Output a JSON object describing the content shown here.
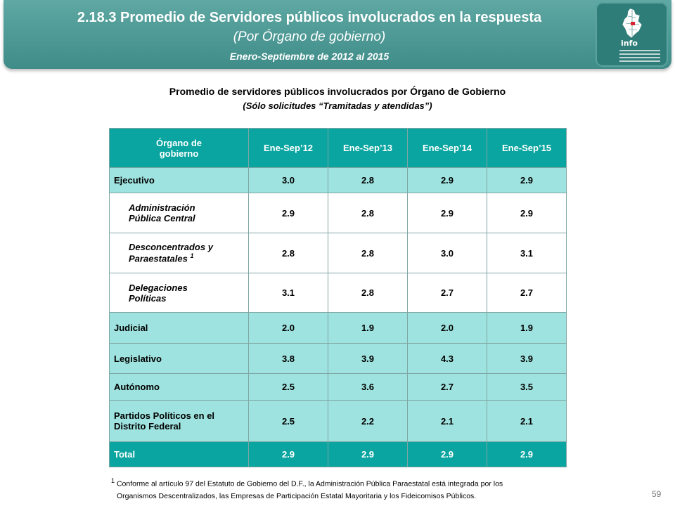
{
  "header": {
    "title": "2.18.3 Promedio de Servidores públicos involucrados en la respuesta",
    "subtitle": "(Por Órgano de gobierno)",
    "period": "Enero-Septiembre de 2012 al 2015"
  },
  "logo": {
    "text": "info",
    "icon": "mexico-city-map-icon"
  },
  "caption": {
    "line1": "Promedio de servidores públicos involucrados por Órgano de Gobierno",
    "line2": "(Sólo solicitudes “Tramitadas y atendidas”)"
  },
  "table": {
    "header": {
      "col0_line1": "Órgano de",
      "col0_line2": "gobierno",
      "c1": "Ene-Sep’12",
      "c2": "Ene-Sep’13",
      "c3": "Ene-Sep’14",
      "c4": "Ene-Sep’15"
    },
    "rows": [
      {
        "l1": "Ejecutivo",
        "l2": "",
        "v": [
          "3.0",
          "2.8",
          "2.9",
          "2.9"
        ]
      },
      {
        "l1": "Administración",
        "l2": "Pública Central",
        "v": [
          "2.9",
          "2.8",
          "2.9",
          "2.9"
        ]
      },
      {
        "l1": "Desconcentrados y",
        "l2": "Paraestatales",
        "note": "1",
        "v": [
          "2.8",
          "2.8",
          "3.0",
          "3.1"
        ]
      },
      {
        "l1": "Delegaciones",
        "l2": "Políticas",
        "v": [
          "3.1",
          "2.8",
          "2.7",
          "2.7"
        ]
      },
      {
        "l1": "Judicial",
        "l2": "",
        "v": [
          "2.0",
          "1.9",
          "2.0",
          "1.9"
        ]
      },
      {
        "l1": "Legislativo",
        "l2": "",
        "v": [
          "3.8",
          "3.9",
          "4.3",
          "3.9"
        ]
      },
      {
        "l1": "Autónomo",
        "l2": "",
        "v": [
          "2.5",
          "3.6",
          "2.7",
          "3.5"
        ]
      },
      {
        "l1": "Partidos Políticos en el",
        "l2": "Distrito Federal",
        "v": [
          "2.5",
          "2.2",
          "2.1",
          "2.1"
        ]
      },
      {
        "l1": "Total",
        "l2": "",
        "v": [
          "2.9",
          "2.9",
          "2.9",
          "2.9"
        ]
      }
    ]
  },
  "footnote": {
    "mark": "1",
    "line1": "Conforme al artículo 97 del Estatuto de Gobierno del D.F., la Administración Pública Paraestatal está integrada por los",
    "line2": "Organismos Descentralizados, las Empresas de Participación Estatal Mayoritaria y los Fideicomisos Públicos."
  },
  "page_number": "59"
}
